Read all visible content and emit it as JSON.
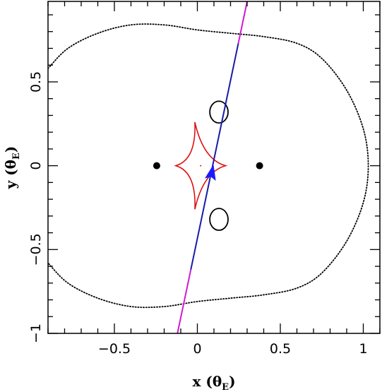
{
  "chart_data": {
    "type": "scatter",
    "title": "",
    "xlabel": "x",
    "ylabel": "y",
    "label_unit_symbol": "θ",
    "label_unit_subscript": "E",
    "xlim": [
      -0.9,
      1.1
    ],
    "ylim": [
      -1.0,
      0.98
    ],
    "x_ticks": [
      -0.5,
      0,
      0.5,
      1
    ],
    "x_tick_labels": [
      "−0.5",
      "0",
      "0.5",
      "1"
    ],
    "y_ticks": [
      -1,
      -0.5,
      0,
      0.5
    ],
    "y_tick_labels": [
      "−1",
      "−0.5",
      "0",
      "0.5"
    ],
    "grid": false,
    "colors": {
      "critical_curve": "#000000",
      "caustic": "#dd1111",
      "trajectory_inner": "#1a1aaa",
      "trajectory_outer": "#d11ad1",
      "arrow": "#1a1aff",
      "lens_point": "#000000"
    },
    "lenses": [
      {
        "x": -0.245,
        "y": 0.0
      },
      {
        "x": 0.375,
        "y": 0.0
      }
    ],
    "caustic_center": [
      0.02,
      0.0
    ],
    "caustic_cusps": [
      [
        -0.015,
        0.26
      ],
      [
        0.17,
        0.0
      ],
      [
        -0.015,
        -0.26
      ],
      [
        -0.13,
        0.0
      ]
    ],
    "small_critical_curves": [
      {
        "x": 0.13,
        "y": 0.32,
        "rx": 0.055,
        "ry": 0.065
      },
      {
        "x": 0.13,
        "y": -0.32,
        "rx": 0.055,
        "ry": 0.065
      }
    ],
    "outer_critical_curve": [
      [
        -0.9,
        0.58
      ],
      [
        -0.78,
        0.7
      ],
      [
        -0.6,
        0.79
      ],
      [
        -0.4,
        0.84
      ],
      [
        -0.2,
        0.84
      ],
      [
        0.0,
        0.81
      ],
      [
        0.2,
        0.79
      ],
      [
        0.4,
        0.77
      ],
      [
        0.6,
        0.73
      ],
      [
        0.75,
        0.64
      ],
      [
        0.9,
        0.45
      ],
      [
        1.0,
        0.22
      ],
      [
        1.03,
        0.0
      ],
      [
        1.0,
        -0.22
      ],
      [
        0.9,
        -0.45
      ],
      [
        0.75,
        -0.64
      ],
      [
        0.6,
        -0.73
      ],
      [
        0.4,
        -0.77
      ],
      [
        0.2,
        -0.79
      ],
      [
        0.0,
        -0.81
      ],
      [
        -0.2,
        -0.84
      ],
      [
        -0.4,
        -0.84
      ],
      [
        -0.6,
        -0.79
      ],
      [
        -0.78,
        -0.7
      ],
      [
        -0.9,
        -0.58
      ]
    ],
    "trajectory": {
      "start": [
        -0.12,
        -1.0
      ],
      "end": [
        0.3,
        0.98
      ],
      "inner_range_y": [
        -0.62,
        0.73
      ]
    },
    "arrow": {
      "x": 0.085,
      "y": -0.05,
      "direction": "up"
    }
  }
}
